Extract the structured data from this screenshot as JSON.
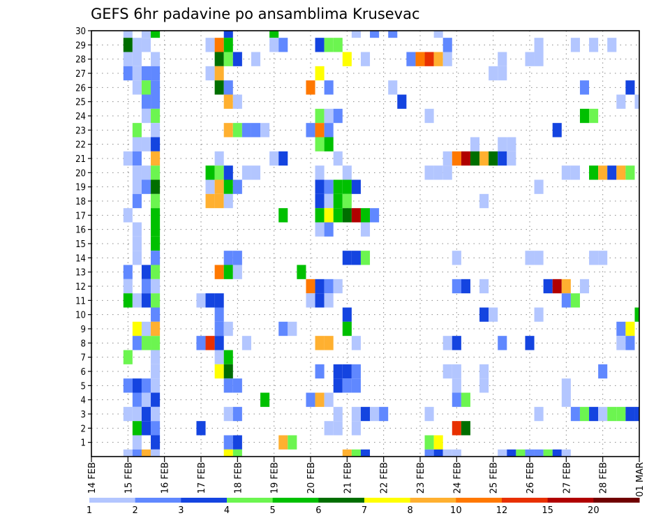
{
  "chart_data": {
    "type": "heatmap",
    "title": "GEFS 6hr padavine po ansamblima Krusevac",
    "xlabel": "",
    "ylabel": "",
    "x_unit": "6-hour steps from 14 FEB 00Z",
    "x_range": [
      0,
      60
    ],
    "y_range": [
      0,
      30
    ],
    "y_ticks": [
      1,
      2,
      3,
      4,
      5,
      6,
      7,
      8,
      9,
      10,
      11,
      12,
      13,
      14,
      15,
      16,
      17,
      18,
      19,
      20,
      21,
      22,
      23,
      24,
      25,
      26,
      27,
      28,
      29,
      30
    ],
    "x_ticks": [
      {
        "step": 0,
        "label": "14 FEB"
      },
      {
        "step": 4,
        "label": "15 FEB"
      },
      {
        "step": 8,
        "label": "16 FEB"
      },
      {
        "step": 12,
        "label": "17 FEB"
      },
      {
        "step": 16,
        "label": "18 FEB"
      },
      {
        "step": 20,
        "label": "19 FEB"
      },
      {
        "step": 24,
        "label": "20 FEB"
      },
      {
        "step": 28,
        "label": "21 FEB"
      },
      {
        "step": 32,
        "label": "22 FEB"
      },
      {
        "step": 36,
        "label": "23 FEB"
      },
      {
        "step": 40,
        "label": "24 FEB"
      },
      {
        "step": 44,
        "label": "25 FEB"
      },
      {
        "step": 48,
        "label": "26 FEB"
      },
      {
        "step": 52,
        "label": "27 FEB"
      },
      {
        "step": 56,
        "label": "28 FEB"
      },
      {
        "step": 60,
        "label": "01 MAR"
      }
    ],
    "grid": true,
    "colorbar": {
      "placement": "bottom",
      "levels": [
        "1",
        "2",
        "3",
        "4",
        "5",
        "6",
        "7",
        "8",
        "10",
        "12",
        "15",
        "20"
      ],
      "colors": [
        "#b3c6ff",
        "#6088ff",
        "#1444e0",
        "#6cf550",
        "#00c000",
        "#006e00",
        "#ffff00",
        "#ffb030",
        "#ff7800",
        "#e83000",
        "#b00000",
        "#700000"
      ]
    },
    "cells_format": "[time_step, member, color_class (1-12 index into colorbar)]",
    "cells": [
      [
        4,
        30,
        1
      ],
      [
        6,
        30,
        1
      ],
      [
        7,
        30,
        5
      ],
      [
        15,
        30,
        3
      ],
      [
        20,
        30,
        5
      ],
      [
        29,
        30,
        1
      ],
      [
        31,
        30,
        2
      ],
      [
        33,
        30,
        2
      ],
      [
        38,
        30,
        1
      ],
      [
        4,
        29,
        6
      ],
      [
        5,
        29,
        1
      ],
      [
        6,
        29,
        1
      ],
      [
        13,
        29,
        1
      ],
      [
        14,
        29,
        9
      ],
      [
        15,
        29,
        5
      ],
      [
        20,
        29,
        1
      ],
      [
        21,
        29,
        2
      ],
      [
        25,
        29,
        3
      ],
      [
        26,
        29,
        4
      ],
      [
        27,
        29,
        4
      ],
      [
        39,
        29,
        2
      ],
      [
        49,
        29,
        1
      ],
      [
        53,
        29,
        1
      ],
      [
        55,
        29,
        1
      ],
      [
        57,
        29,
        1
      ],
      [
        4,
        28,
        1
      ],
      [
        5,
        28,
        1
      ],
      [
        7,
        28,
        1
      ],
      [
        14,
        28,
        6
      ],
      [
        15,
        28,
        4
      ],
      [
        16,
        28,
        3
      ],
      [
        18,
        28,
        1
      ],
      [
        28,
        28,
        7
      ],
      [
        30,
        28,
        1
      ],
      [
        35,
        28,
        2
      ],
      [
        36,
        28,
        9
      ],
      [
        37,
        28,
        10
      ],
      [
        38,
        28,
        8
      ],
      [
        39,
        28,
        1
      ],
      [
        45,
        28,
        1
      ],
      [
        48,
        28,
        1
      ],
      [
        49,
        28,
        1
      ],
      [
        4,
        27,
        2
      ],
      [
        5,
        27,
        1
      ],
      [
        6,
        27,
        2
      ],
      [
        7,
        27,
        2
      ],
      [
        13,
        27,
        1
      ],
      [
        14,
        27,
        8
      ],
      [
        25,
        27,
        7
      ],
      [
        44,
        27,
        1
      ],
      [
        45,
        27,
        1
      ],
      [
        5,
        26,
        1
      ],
      [
        6,
        26,
        4
      ],
      [
        7,
        26,
        2
      ],
      [
        14,
        26,
        6
      ],
      [
        15,
        26,
        2
      ],
      [
        24,
        26,
        9
      ],
      [
        26,
        26,
        2
      ],
      [
        33,
        26,
        1
      ],
      [
        54,
        26,
        2
      ],
      [
        59,
        26,
        3
      ],
      [
        6,
        25,
        2
      ],
      [
        7,
        25,
        2
      ],
      [
        15,
        25,
        8
      ],
      [
        16,
        25,
        1
      ],
      [
        34,
        25,
        3
      ],
      [
        58,
        25,
        1
      ],
      [
        60,
        25,
        1
      ],
      [
        6,
        24,
        1
      ],
      [
        7,
        24,
        4
      ],
      [
        25,
        24,
        4
      ],
      [
        26,
        24,
        1
      ],
      [
        27,
        24,
        2
      ],
      [
        37,
        24,
        1
      ],
      [
        54,
        24,
        5
      ],
      [
        55,
        24,
        4
      ],
      [
        5,
        23,
        4
      ],
      [
        7,
        23,
        1
      ],
      [
        15,
        23,
        8
      ],
      [
        16,
        23,
        4
      ],
      [
        17,
        23,
        2
      ],
      [
        18,
        23,
        2
      ],
      [
        19,
        23,
        1
      ],
      [
        24,
        23,
        2
      ],
      [
        25,
        23,
        9
      ],
      [
        26,
        23,
        2
      ],
      [
        51,
        23,
        3
      ],
      [
        5,
        22,
        1
      ],
      [
        6,
        22,
        1
      ],
      [
        7,
        22,
        3
      ],
      [
        25,
        22,
        4
      ],
      [
        26,
        22,
        5
      ],
      [
        42,
        22,
        1
      ],
      [
        45,
        22,
        1
      ],
      [
        46,
        22,
        1
      ],
      [
        4,
        21,
        1
      ],
      [
        5,
        21,
        2
      ],
      [
        7,
        21,
        8
      ],
      [
        14,
        21,
        1
      ],
      [
        20,
        21,
        1
      ],
      [
        21,
        21,
        3
      ],
      [
        27,
        21,
        1
      ],
      [
        39,
        21,
        1
      ],
      [
        40,
        21,
        9
      ],
      [
        41,
        21,
        11
      ],
      [
        42,
        21,
        6
      ],
      [
        43,
        21,
        8
      ],
      [
        44,
        21,
        6
      ],
      [
        45,
        21,
        3
      ],
      [
        46,
        21,
        1
      ],
      [
        5,
        20,
        1
      ],
      [
        6,
        20,
        1
      ],
      [
        7,
        20,
        4
      ],
      [
        13,
        20,
        5
      ],
      [
        14,
        20,
        4
      ],
      [
        15,
        20,
        3
      ],
      [
        17,
        20,
        1
      ],
      [
        18,
        20,
        1
      ],
      [
        25,
        20,
        1
      ],
      [
        28,
        20,
        1
      ],
      [
        37,
        20,
        1
      ],
      [
        38,
        20,
        1
      ],
      [
        39,
        20,
        1
      ],
      [
        52,
        20,
        1
      ],
      [
        53,
        20,
        1
      ],
      [
        55,
        20,
        5
      ],
      [
        56,
        20,
        8
      ],
      [
        57,
        20,
        3
      ],
      [
        58,
        20,
        8
      ],
      [
        59,
        20,
        4
      ],
      [
        5,
        19,
        1
      ],
      [
        6,
        19,
        2
      ],
      [
        7,
        19,
        6
      ],
      [
        13,
        19,
        1
      ],
      [
        14,
        19,
        8
      ],
      [
        15,
        19,
        5
      ],
      [
        16,
        19,
        2
      ],
      [
        25,
        19,
        3
      ],
      [
        26,
        19,
        2
      ],
      [
        27,
        19,
        5
      ],
      [
        28,
        19,
        5
      ],
      [
        29,
        19,
        3
      ],
      [
        49,
        19,
        1
      ],
      [
        5,
        18,
        2
      ],
      [
        7,
        18,
        4
      ],
      [
        13,
        18,
        8
      ],
      [
        14,
        18,
        8
      ],
      [
        15,
        18,
        1
      ],
      [
        25,
        18,
        3
      ],
      [
        26,
        18,
        1
      ],
      [
        27,
        18,
        5
      ],
      [
        28,
        18,
        4
      ],
      [
        43,
        18,
        1
      ],
      [
        4,
        17,
        1
      ],
      [
        7,
        17,
        5
      ],
      [
        21,
        17,
        5
      ],
      [
        25,
        17,
        5
      ],
      [
        26,
        17,
        7
      ],
      [
        27,
        17,
        5
      ],
      [
        28,
        17,
        6
      ],
      [
        29,
        17,
        11
      ],
      [
        30,
        17,
        5
      ],
      [
        31,
        17,
        2
      ],
      [
        5,
        16,
        1
      ],
      [
        7,
        16,
        5
      ],
      [
        25,
        16,
        1
      ],
      [
        26,
        16,
        2
      ],
      [
        30,
        16,
        1
      ],
      [
        5,
        15,
        1
      ],
      [
        7,
        15,
        5
      ],
      [
        5,
        14,
        1
      ],
      [
        7,
        14,
        2
      ],
      [
        15,
        14,
        2
      ],
      [
        16,
        14,
        2
      ],
      [
        28,
        14,
        3
      ],
      [
        29,
        14,
        3
      ],
      [
        30,
        14,
        4
      ],
      [
        40,
        14,
        1
      ],
      [
        48,
        14,
        1
      ],
      [
        49,
        14,
        1
      ],
      [
        55,
        14,
        1
      ],
      [
        56,
        14,
        1
      ],
      [
        4,
        13,
        2
      ],
      [
        6,
        13,
        3
      ],
      [
        7,
        13,
        4
      ],
      [
        14,
        13,
        9
      ],
      [
        15,
        13,
        5
      ],
      [
        16,
        13,
        1
      ],
      [
        23,
        13,
        5
      ],
      [
        4,
        12,
        1
      ],
      [
        6,
        12,
        2
      ],
      [
        7,
        12,
        1
      ],
      [
        24,
        12,
        9
      ],
      [
        25,
        12,
        3
      ],
      [
        26,
        12,
        2
      ],
      [
        27,
        12,
        1
      ],
      [
        40,
        12,
        2
      ],
      [
        41,
        12,
        3
      ],
      [
        43,
        12,
        1
      ],
      [
        50,
        12,
        3
      ],
      [
        51,
        12,
        11
      ],
      [
        52,
        12,
        8
      ],
      [
        54,
        12,
        1
      ],
      [
        4,
        11,
        5
      ],
      [
        5,
        11,
        1
      ],
      [
        6,
        11,
        3
      ],
      [
        7,
        11,
        4
      ],
      [
        12,
        11,
        1
      ],
      [
        13,
        11,
        3
      ],
      [
        14,
        11,
        3
      ],
      [
        24,
        11,
        1
      ],
      [
        25,
        11,
        3
      ],
      [
        26,
        11,
        1
      ],
      [
        52,
        11,
        2
      ],
      [
        53,
        11,
        4
      ],
      [
        7,
        10,
        2
      ],
      [
        14,
        10,
        2
      ],
      [
        28,
        10,
        3
      ],
      [
        43,
        10,
        3
      ],
      [
        44,
        10,
        1
      ],
      [
        49,
        10,
        1
      ],
      [
        60,
        10,
        5
      ],
      [
        5,
        9,
        7
      ],
      [
        6,
        9,
        1
      ],
      [
        7,
        9,
        8
      ],
      [
        14,
        9,
        2
      ],
      [
        15,
        9,
        1
      ],
      [
        21,
        9,
        2
      ],
      [
        22,
        9,
        1
      ],
      [
        28,
        9,
        5
      ],
      [
        58,
        9,
        2
      ],
      [
        59,
        9,
        7
      ],
      [
        5,
        8,
        2
      ],
      [
        6,
        8,
        4
      ],
      [
        7,
        8,
        4
      ],
      [
        12,
        8,
        2
      ],
      [
        13,
        8,
        10
      ],
      [
        14,
        8,
        3
      ],
      [
        17,
        8,
        1
      ],
      [
        25,
        8,
        8
      ],
      [
        26,
        8,
        8
      ],
      [
        29,
        8,
        1
      ],
      [
        39,
        8,
        1
      ],
      [
        40,
        8,
        3
      ],
      [
        45,
        8,
        2
      ],
      [
        48,
        8,
        3
      ],
      [
        58,
        8,
        1
      ],
      [
        59,
        8,
        2
      ],
      [
        4,
        7,
        4
      ],
      [
        7,
        7,
        1
      ],
      [
        14,
        7,
        1
      ],
      [
        15,
        7,
        5
      ],
      [
        7,
        6,
        1
      ],
      [
        14,
        6,
        7
      ],
      [
        15,
        6,
        6
      ],
      [
        25,
        6,
        2
      ],
      [
        27,
        6,
        3
      ],
      [
        28,
        6,
        3
      ],
      [
        29,
        6,
        2
      ],
      [
        39,
        6,
        1
      ],
      [
        40,
        6,
        1
      ],
      [
        43,
        6,
        1
      ],
      [
        56,
        6,
        2
      ],
      [
        4,
        5,
        2
      ],
      [
        5,
        5,
        3
      ],
      [
        6,
        5,
        2
      ],
      [
        7,
        5,
        1
      ],
      [
        15,
        5,
        2
      ],
      [
        16,
        5,
        2
      ],
      [
        27,
        5,
        3
      ],
      [
        28,
        5,
        2
      ],
      [
        29,
        5,
        2
      ],
      [
        40,
        5,
        1
      ],
      [
        43,
        5,
        1
      ],
      [
        52,
        5,
        1
      ],
      [
        5,
        4,
        2
      ],
      [
        6,
        4,
        1
      ],
      [
        7,
        4,
        3
      ],
      [
        19,
        4,
        5
      ],
      [
        24,
        4,
        2
      ],
      [
        25,
        4,
        8
      ],
      [
        26,
        4,
        1
      ],
      [
        40,
        4,
        2
      ],
      [
        41,
        4,
        4
      ],
      [
        52,
        4,
        1
      ],
      [
        4,
        3,
        1
      ],
      [
        5,
        3,
        1
      ],
      [
        6,
        3,
        3
      ],
      [
        7,
        3,
        1
      ],
      [
        15,
        3,
        1
      ],
      [
        16,
        3,
        2
      ],
      [
        27,
        3,
        1
      ],
      [
        29,
        3,
        1
      ],
      [
        30,
        3,
        3
      ],
      [
        31,
        3,
        1
      ],
      [
        32,
        3,
        2
      ],
      [
        37,
        3,
        1
      ],
      [
        49,
        3,
        1
      ],
      [
        53,
        3,
        2
      ],
      [
        54,
        3,
        4
      ],
      [
        55,
        3,
        3
      ],
      [
        56,
        3,
        1
      ],
      [
        57,
        3,
        4
      ],
      [
        58,
        3,
        4
      ],
      [
        59,
        3,
        3
      ],
      [
        60,
        3,
        3
      ],
      [
        5,
        2,
        5
      ],
      [
        6,
        2,
        3
      ],
      [
        7,
        2,
        2
      ],
      [
        12,
        2,
        3
      ],
      [
        26,
        2,
        1
      ],
      [
        27,
        2,
        1
      ],
      [
        29,
        2,
        1
      ],
      [
        40,
        2,
        10
      ],
      [
        41,
        2,
        6
      ],
      [
        5,
        1,
        1
      ],
      [
        7,
        1,
        3
      ],
      [
        15,
        1,
        2
      ],
      [
        16,
        1,
        3
      ],
      [
        21,
        1,
        8
      ],
      [
        22,
        1,
        4
      ],
      [
        37,
        1,
        4
      ],
      [
        38,
        1,
        7
      ],
      [
        4,
        0,
        1
      ],
      [
        5,
        0,
        2
      ],
      [
        6,
        0,
        8
      ],
      [
        7,
        0,
        1
      ],
      [
        15,
        0,
        7
      ],
      [
        16,
        0,
        4
      ],
      [
        28,
        0,
        8
      ],
      [
        29,
        0,
        4
      ],
      [
        30,
        0,
        3
      ],
      [
        37,
        0,
        2
      ],
      [
        38,
        0,
        3
      ],
      [
        39,
        0,
        1
      ],
      [
        40,
        0,
        1
      ],
      [
        45,
        0,
        1
      ],
      [
        46,
        0,
        3
      ],
      [
        47,
        0,
        4
      ],
      [
        48,
        0,
        2
      ],
      [
        49,
        0,
        2
      ],
      [
        50,
        0,
        4
      ],
      [
        51,
        0,
        3
      ],
      [
        52,
        0,
        1
      ]
    ]
  }
}
